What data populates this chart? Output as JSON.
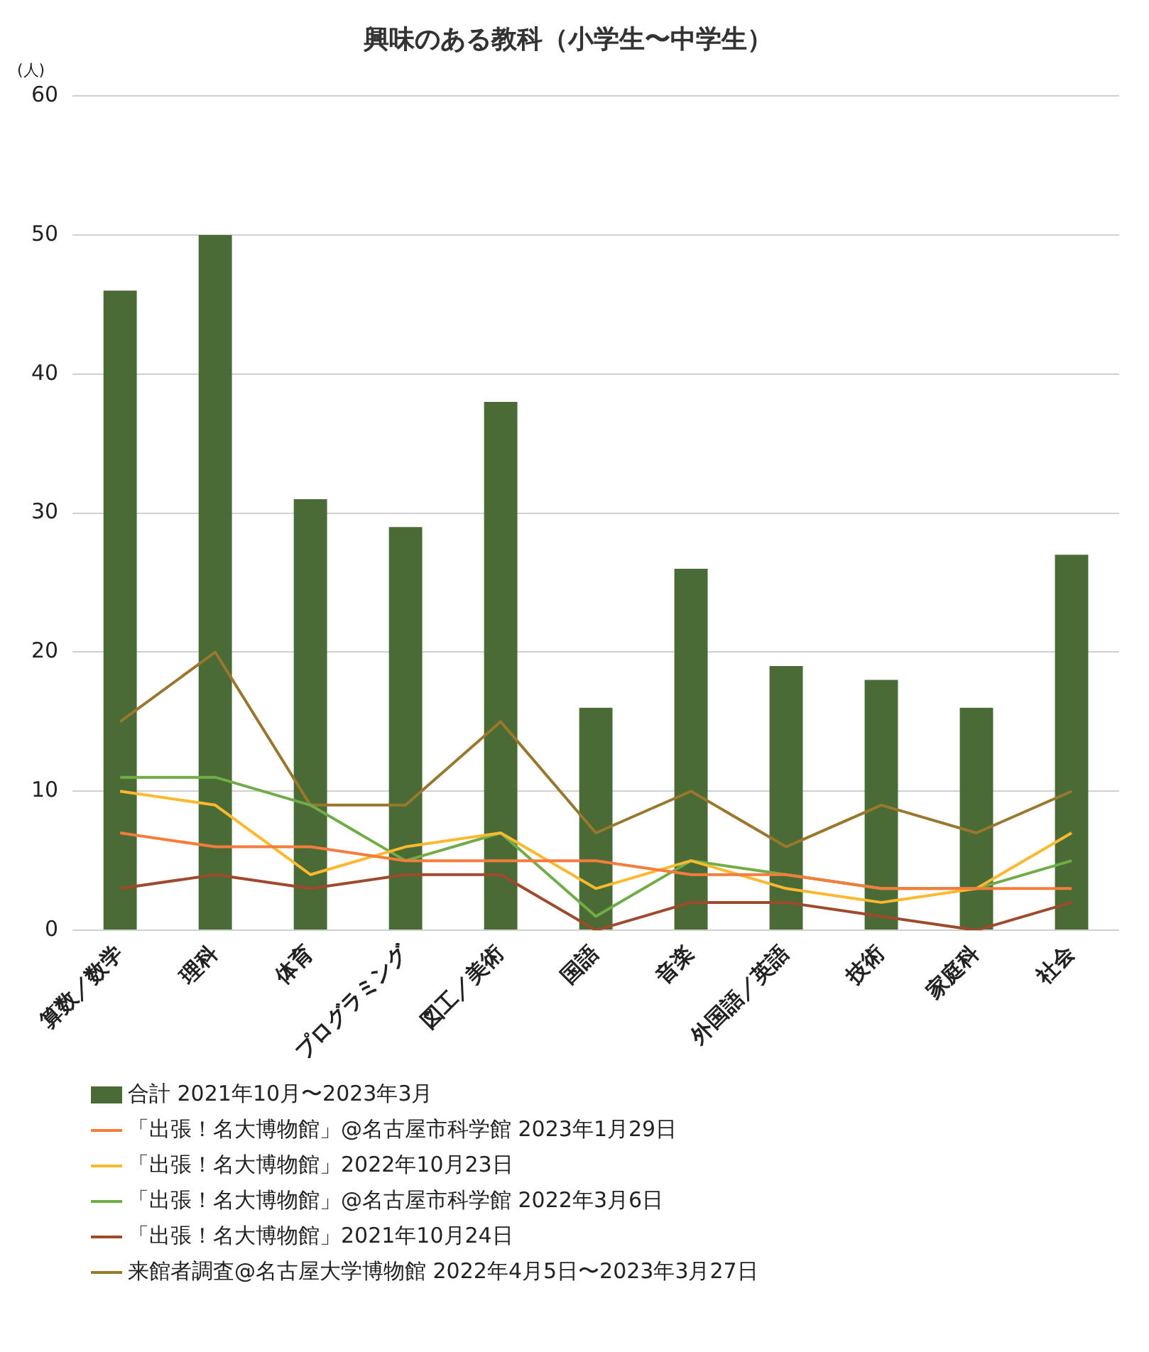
{
  "chart_data": {
    "type": "bar",
    "title": "興味のある教科（小学生〜中学生）",
    "ylabel": "(人)",
    "categories": [
      "算数／数学",
      "理科",
      "体育",
      "プログラミング",
      "図工／美術",
      "国語",
      "音楽",
      "外国語／英語",
      "技術",
      "家庭科",
      "社会"
    ],
    "series": [
      {
        "name": "合計 2021年10月〜2023年3月",
        "color": "#4a6a36",
        "values": [
          46,
          50,
          31,
          29,
          38,
          16,
          26,
          19,
          18,
          16,
          27
        ]
      },
      {
        "name": "「出張！名大博物館」@名古屋市科学館 2023年1月29日",
        "type": "line",
        "color": "#f47c3c",
        "values": [
          7,
          6,
          6,
          5,
          5,
          5,
          4,
          4,
          3,
          3,
          3
        ]
      },
      {
        "name": "「出張！名大博物館」2022年10月23日",
        "type": "line",
        "color": "#fbb92f",
        "values": [
          10,
          9,
          4,
          6,
          7,
          3,
          5,
          3,
          2,
          3,
          7
        ]
      },
      {
        "name": "「出張！名大博物館」@名古屋市科学館 2022年3月6日",
        "type": "line",
        "color": "#70ad47",
        "values": [
          11,
          11,
          9,
          5,
          7,
          1,
          5,
          4,
          3,
          3,
          5
        ]
      },
      {
        "name": "「出張！名大博物館」2021年10月24日",
        "type": "line",
        "color": "#9e4a2c",
        "values": [
          3,
          4,
          3,
          4,
          4,
          0,
          2,
          2,
          1,
          0,
          2
        ]
      },
      {
        "name": "来館者調査@名古屋大学博物館 2022年4月5日〜2023年3月27日",
        "type": "line",
        "color": "#99782e",
        "values": [
          15,
          20,
          9,
          9,
          15,
          7,
          10,
          6,
          9,
          7,
          10
        ]
      }
    ],
    "ylim": [
      0,
      60
    ],
    "yticks": [
      0,
      10,
      20,
      30,
      40,
      50,
      60
    ],
    "grid": "y",
    "legend": "bottom",
    "marker": "none"
  }
}
